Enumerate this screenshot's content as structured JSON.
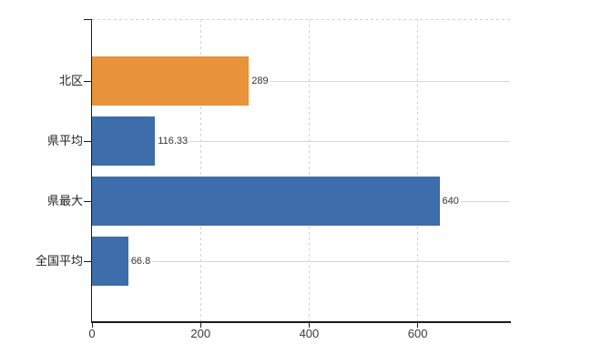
{
  "chart_data": {
    "type": "bar",
    "orientation": "horizontal",
    "categories": [
      "北区",
      "県平均",
      "県最大",
      "全国平均"
    ],
    "values": [
      289,
      116.33,
      640,
      66.8
    ],
    "value_labels": [
      "289",
      "116.33",
      "640",
      "66.8"
    ],
    "bar_colors": [
      "#e8923c",
      "#3d6daa",
      "#3d6daa",
      "#3d6daa"
    ],
    "x_ticks": [
      0,
      200,
      400,
      600
    ],
    "x_tick_labels": [
      "0",
      "200",
      "400",
      "600"
    ],
    "xlim": [
      0,
      770
    ],
    "grid": true,
    "legend": false,
    "gridline_style": {
      "vertical": "dashed",
      "horizontal": "solid"
    },
    "colors": {
      "grid": "#d6d6d6",
      "axis": "#1a1a1a",
      "tick_text": "#3a3a3a",
      "category_text": "#222222",
      "value_text": "#333333",
      "background": "#ffffff"
    }
  }
}
